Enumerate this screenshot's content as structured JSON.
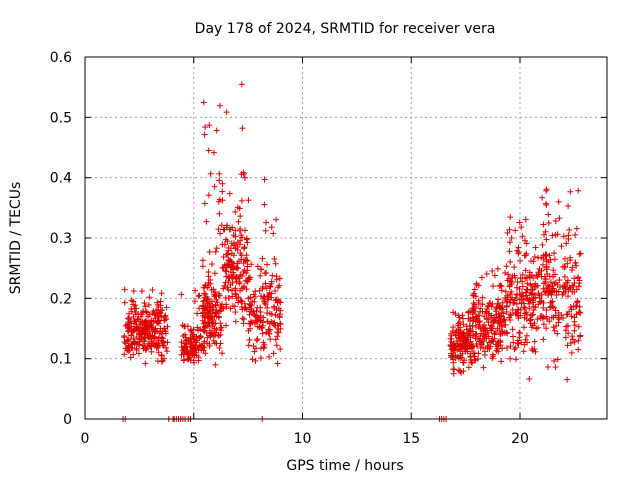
{
  "chart_data": {
    "type": "scatter",
    "title": "Day 178 of 2024, SRMTID for receiver vera",
    "xlabel": "GPS time / hours",
    "ylabel": "SRMTID / TECUs",
    "xlim": [
      0,
      24
    ],
    "ylim": [
      0,
      0.6
    ],
    "x_ticks": [
      0,
      5,
      10,
      15,
      20
    ],
    "y_ticks": [
      0,
      0.1,
      0.2,
      0.3,
      0.4,
      0.5,
      0.6
    ],
    "x_tick_labels": [
      "0",
      "5",
      "10",
      "15",
      "20"
    ],
    "y_tick_labels": [
      "0",
      "0.1",
      "0.2",
      "0.3",
      "0.4",
      "0.5",
      "0.6"
    ],
    "grid": true,
    "marker": "+",
    "color": "#e00000",
    "series": [
      {
        "name": "SRMTID",
        "clusters": [
          {
            "x_start": 1.8,
            "x_end": 3.8,
            "y_min": 0.08,
            "y_max": 0.22,
            "y_center": 0.14,
            "count": 260
          },
          {
            "x_start": 4.4,
            "x_end": 5.4,
            "y_min": 0.08,
            "y_max": 0.22,
            "y_center": 0.12,
            "count": 110
          },
          {
            "x_start": 5.4,
            "x_end": 6.3,
            "y_min": 0.08,
            "y_max": 0.53,
            "y_center": 0.17,
            "count": 170
          },
          {
            "x_start": 6.3,
            "x_end": 7.5,
            "y_min": 0.12,
            "y_max": 0.57,
            "y_center": 0.25,
            "count": 170
          },
          {
            "x_start": 7.5,
            "x_end": 9.0,
            "y_min": 0.07,
            "y_max": 0.43,
            "y_center": 0.17,
            "count": 170
          },
          {
            "x_start": 16.8,
            "x_end": 17.8,
            "y_min": 0.06,
            "y_max": 0.18,
            "y_center": 0.12,
            "count": 160
          },
          {
            "x_start": 17.8,
            "x_end": 19.3,
            "y_min": 0.08,
            "y_max": 0.25,
            "y_center": 0.15,
            "count": 200
          },
          {
            "x_start": 19.3,
            "x_end": 21.0,
            "y_min": 0.06,
            "y_max": 0.35,
            "y_center": 0.19,
            "count": 210
          },
          {
            "x_start": 21.0,
            "x_end": 22.8,
            "y_min": 0.06,
            "y_max": 0.39,
            "y_center": 0.21,
            "count": 200
          }
        ],
        "zero_points_x": [
          1.75,
          1.85,
          3.85,
          4.05,
          4.1,
          4.2,
          4.3,
          4.4,
          4.5,
          4.6,
          4.75,
          4.85,
          8.15,
          16.3,
          16.4,
          16.5,
          16.6
        ]
      }
    ]
  }
}
